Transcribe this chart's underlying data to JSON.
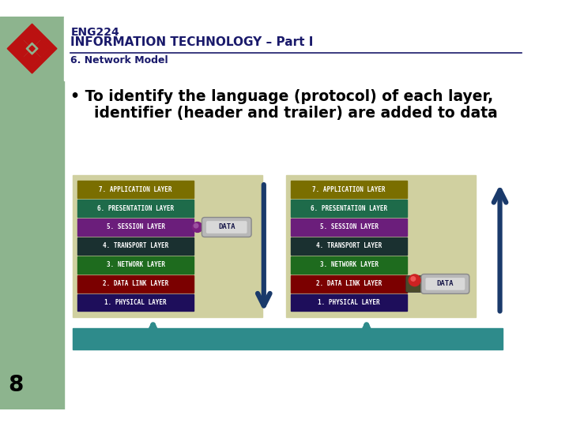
{
  "title1": "ENG224",
  "title2": "INFORMATION TECHNOLOGY – Part I",
  "subtitle": "6. Network Model",
  "bullet_line1": "• To identify the language (protocol) of each layer,",
  "bullet_line2": "  identifier (header and trailer) are added to data",
  "layers": [
    "7. APPLICATION LAYER",
    "6. PRESENTATION LAYER",
    "5. SESSION LAYER",
    "4. TRANSPORT LAYER",
    "3. NETWORK LAYER",
    "2. DATA LINK LAYER",
    "1. PHYSICAL LAYER"
  ],
  "layer_colors": [
    "#7A6E00",
    "#1E6B4A",
    "#6B1E7B",
    "#1A3030",
    "#1E6B1E",
    "#7B0000",
    "#1E0E5B"
  ],
  "bg_color": "#FFFFFF",
  "panel_bg": "#D0D0A0",
  "left_bar_color": "#8DB48E",
  "slide_number": "8",
  "down_arrow_color": "#1A3A6B",
  "up_arrow_color": "#1A3A6B",
  "teal_color": "#2E8B8B",
  "header_line_color": "#1A1A6B",
  "title_color": "#1A1A6B"
}
